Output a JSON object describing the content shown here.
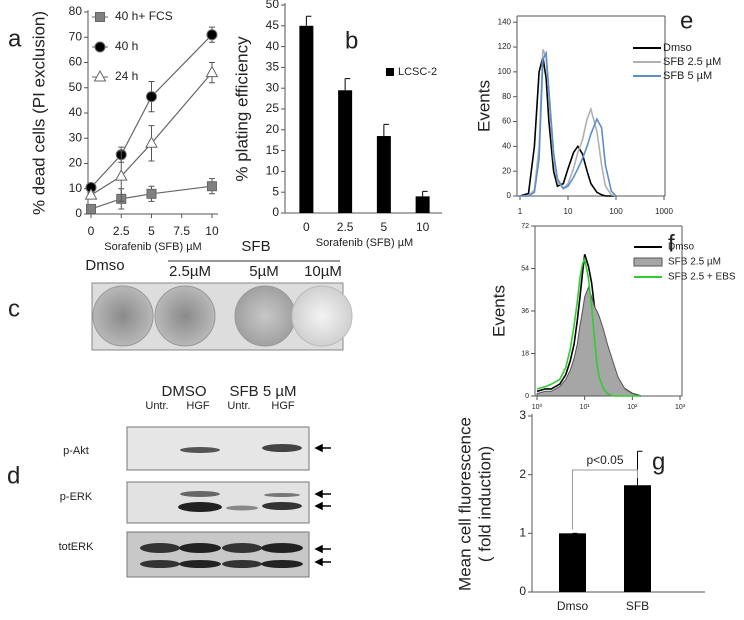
{
  "chart_data": [
    {
      "type": "line",
      "panel": "a",
      "ylabel": "% dead cells (PI exclusion)",
      "xlabel": "Sorafenib (SFB) µM",
      "x": [
        0,
        2.5,
        5,
        10
      ],
      "xlim": [
        -0.25,
        10.5
      ],
      "xticks": [
        0,
        2.5,
        5,
        7.5,
        10
      ],
      "ylim": [
        0,
        80
      ],
      "yticks": [
        0,
        10,
        20,
        30,
        40,
        50,
        60,
        70,
        80
      ],
      "series": [
        {
          "name": "40 h+ FCS",
          "color": "#666666",
          "marker": "square",
          "marker_fill": "#808080",
          "values": [
            2,
            6,
            8,
            11
          ],
          "errors": [
            0.5,
            4,
            3,
            3
          ]
        },
        {
          "name": "40 h",
          "color": "#666666",
          "marker": "circle",
          "marker_fill": "#000000",
          "values": [
            10.5,
            23.5,
            46.5,
            71
          ],
          "errors": [
            1,
            3,
            6,
            3
          ]
        },
        {
          "name": "24 h",
          "color": "#666666",
          "marker": "triangle",
          "marker_fill": "#ffffff",
          "values": [
            7.5,
            15,
            28,
            56
          ],
          "errors": [
            1,
            10,
            7,
            4
          ]
        }
      ]
    },
    {
      "type": "bar",
      "panel": "b",
      "ylabel": "% plating efficiency",
      "xlabel": "Sorafenib (SFB) µM",
      "categories": [
        "0",
        "2.5",
        "5",
        "10"
      ],
      "ylim": [
        0,
        50
      ],
      "yticks": [
        0,
        5,
        10,
        15,
        20,
        25,
        30,
        35,
        40,
        45,
        50
      ],
      "series": [
        {
          "name": "LCSC-2",
          "color": "#000000",
          "values": [
            45,
            29.5,
            18.5,
            4
          ],
          "errors": [
            2.3,
            2.8,
            2.8,
            1.2
          ]
        }
      ]
    },
    {
      "type": "line",
      "panel": "e",
      "ylabel": "Events",
      "xscale": "log",
      "x": [
        1,
        1.5,
        2,
        2.5,
        3,
        3.5,
        4,
        5,
        6,
        8,
        10,
        13,
        16,
        20,
        25,
        30,
        40,
        50,
        60,
        80,
        100
      ],
      "xlim": [
        1,
        1000
      ],
      "xticks": [
        1,
        10,
        100,
        1000
      ],
      "ylim": [
        0,
        145
      ],
      "yticks": [
        0,
        20,
        40,
        60,
        80,
        100,
        120,
        140
      ],
      "series": [
        {
          "name": "Dmso",
          "color": "#000000",
          "values": [
            0,
            2,
            40,
            100,
            112,
            95,
            60,
            20,
            8,
            10,
            22,
            35,
            40,
            34,
            20,
            10,
            3,
            1,
            0,
            0,
            0
          ]
        },
        {
          "name": "SFB 2.5 µM",
          "color": "#b0b0b0",
          "values": [
            0,
            0,
            5,
            40,
            118,
            112,
            80,
            30,
            12,
            6,
            10,
            22,
            35,
            45,
            62,
            70,
            52,
            25,
            8,
            1,
            0
          ]
        },
        {
          "name": "SFB 5  µM",
          "color": "#5b8fc7",
          "values": [
            0,
            0,
            3,
            30,
            110,
            115,
            85,
            35,
            14,
            6,
            8,
            15,
            22,
            30,
            40,
            50,
            62,
            55,
            25,
            4,
            0
          ]
        }
      ]
    },
    {
      "type": "line",
      "panel": "f",
      "ylabel": "Events",
      "xscale": "log",
      "x": [
        1,
        1.5,
        2,
        3,
        4,
        5,
        6,
        7,
        8,
        9,
        10,
        12,
        14,
        16,
        18,
        20,
        25,
        30,
        40,
        50,
        70,
        100,
        150
      ],
      "xlim": [
        1,
        1000
      ],
      "xticks": [
        {
          "value": 1,
          "label": "10⁰"
        },
        {
          "value": 10,
          "label": "10¹"
        },
        {
          "value": 100,
          "label": "10²"
        },
        {
          "value": 1000,
          "label": "10³"
        }
      ],
      "ylim": [
        0,
        72
      ],
      "yticks": [
        0,
        18,
        36,
        54,
        72
      ],
      "series": [
        {
          "name": "Dmso",
          "color": "#000000",
          "values": [
            2,
            3,
            3,
            5,
            9,
            15,
            22,
            32,
            42,
            52,
            60,
            55,
            48,
            38,
            32,
            28,
            22,
            16,
            10,
            6,
            3,
            1,
            0
          ]
        },
        {
          "name": "SFB 2.5 µM",
          "color": "#555555",
          "filled": true,
          "fill": "#a6a6a6",
          "values": [
            1,
            2,
            2,
            4,
            7,
            11,
            16,
            22,
            30,
            36,
            42,
            46,
            42,
            38,
            36,
            34,
            28,
            22,
            14,
            8,
            3,
            1,
            0
          ]
        },
        {
          "name": "SFB 2.5 + EBS",
          "color": "#33cc33",
          "values": [
            3,
            4,
            5,
            7,
            12,
            20,
            30,
            40,
            50,
            56,
            58,
            50,
            38,
            25,
            14,
            8,
            3,
            1,
            0,
            0,
            0,
            0,
            0
          ]
        }
      ]
    },
    {
      "type": "bar",
      "panel": "g",
      "ylabel": [
        "Mean cell fluorescence",
        "( fold induction)"
      ],
      "annotation": "p<0.05",
      "categories": [
        "Dmso",
        "SFB"
      ],
      "values": [
        1,
        1.82
      ],
      "errors": [
        0,
        0.58
      ],
      "color": "#000000",
      "ylim": [
        0,
        3
      ],
      "yticks": [
        0,
        1,
        2,
        3
      ]
    }
  ],
  "plates": {
    "panel": "c",
    "group": "SFB",
    "labels": [
      "Dmso",
      "2.5µM",
      "5µM",
      "10µM"
    ]
  },
  "blots": {
    "panel": "d",
    "groups": [
      "DMSO",
      "SFB 5  µM"
    ],
    "lanes": [
      "Untr.",
      "HGF",
      "Untr.",
      "HGF"
    ],
    "rows": [
      "p-Akt",
      "p-ERK",
      "totERK"
    ]
  }
}
